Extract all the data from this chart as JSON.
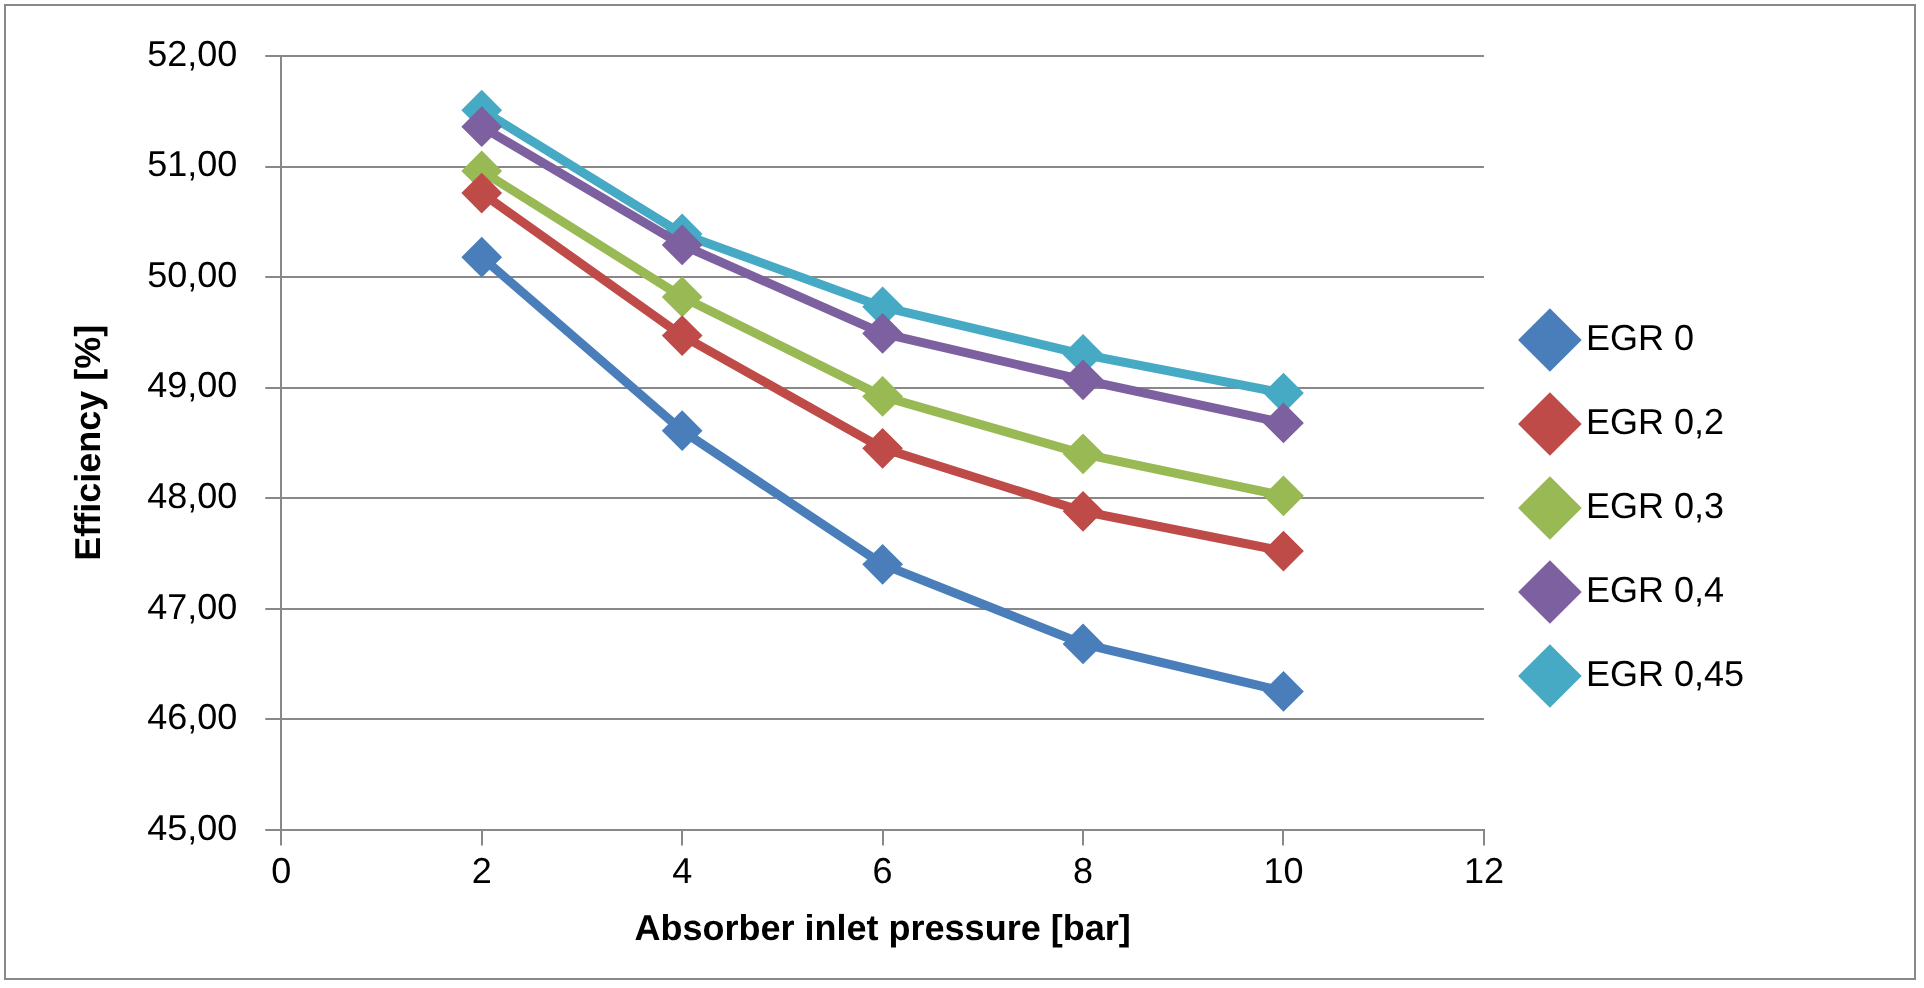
{
  "chart_data": {
    "type": "line",
    "xlabel": "Absorber inlet pressure [bar]",
    "ylabel": "Efficiency [%]",
    "x": [
      2,
      4,
      6,
      8,
      10
    ],
    "series": [
      {
        "name": "EGR 0",
        "color": "#4a7ebb",
        "values": [
          50.18,
          48.61,
          47.4,
          46.68,
          46.25
        ]
      },
      {
        "name": "EGR 0,2",
        "color": "#be4b48",
        "values": [
          50.76,
          49.47,
          48.45,
          47.88,
          47.52
        ]
      },
      {
        "name": "EGR 0,3",
        "color": "#98b954",
        "values": [
          50.96,
          49.82,
          48.92,
          48.4,
          48.02
        ]
      },
      {
        "name": "EGR 0,4",
        "color": "#7d60a0",
        "values": [
          51.36,
          50.29,
          49.49,
          49.07,
          48.68
        ]
      },
      {
        "name": "EGR 0,45",
        "color": "#46aac5",
        "values": [
          51.51,
          50.39,
          49.73,
          49.3,
          48.95
        ]
      }
    ],
    "xlim": [
      0,
      12
    ],
    "xticks": [
      0,
      2,
      4,
      6,
      8,
      10,
      12
    ],
    "ylim": [
      45,
      52
    ],
    "yticks": [
      {
        "value": 45,
        "label": "45,00"
      },
      {
        "value": 46,
        "label": "46,00"
      },
      {
        "value": 47,
        "label": "47,00"
      },
      {
        "value": 48,
        "label": "48,00"
      },
      {
        "value": 49,
        "label": "49,00"
      },
      {
        "value": 50,
        "label": "50,00"
      },
      {
        "value": 51,
        "label": "51,00"
      },
      {
        "value": 52,
        "label": "52,00"
      }
    ],
    "grid": "y",
    "legend": "right",
    "marker": "diamond",
    "line_style": "solid"
  }
}
